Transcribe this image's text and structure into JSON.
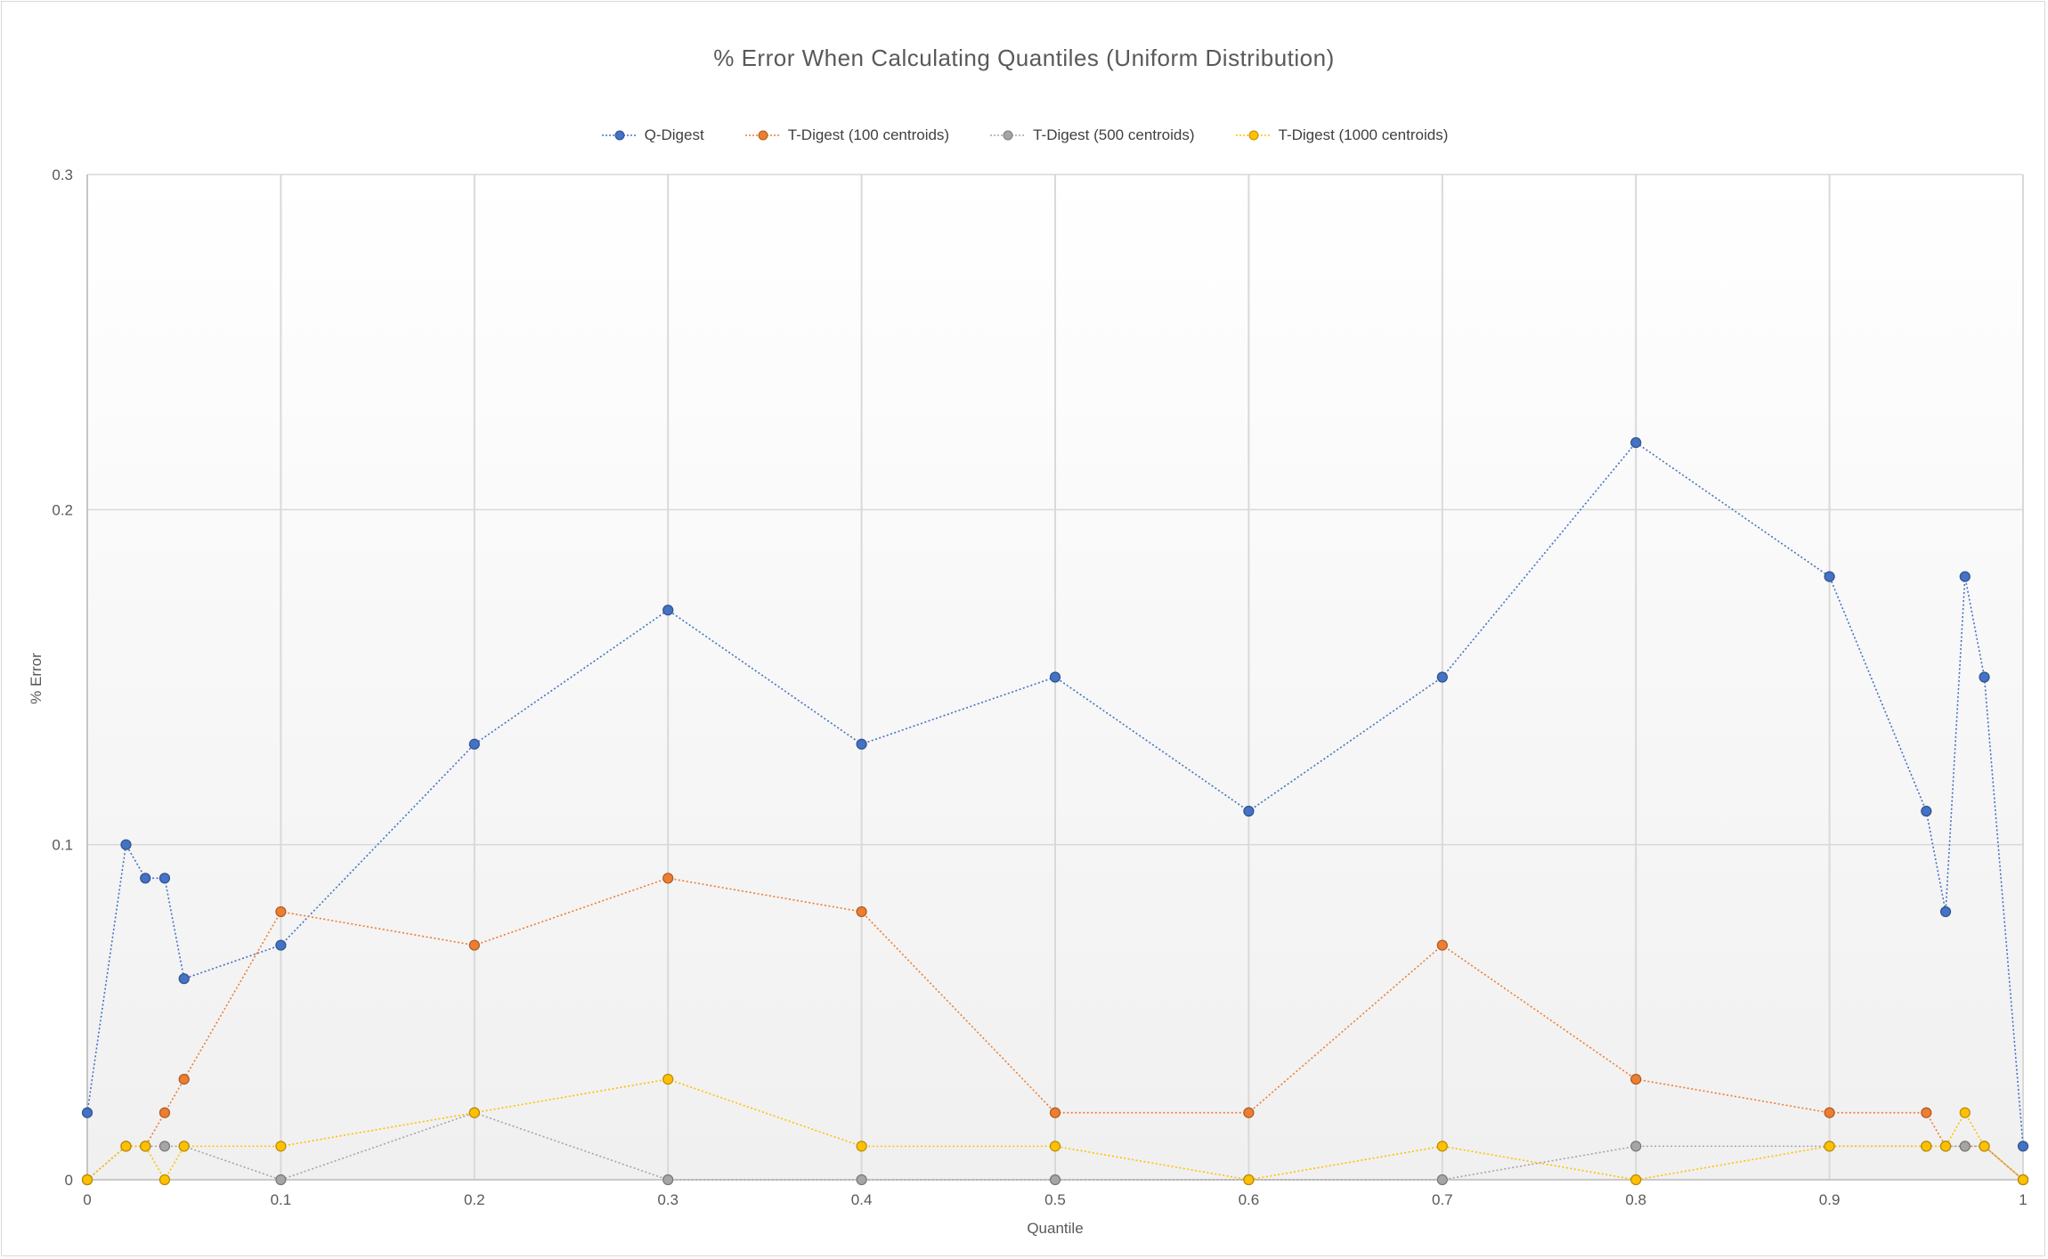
{
  "chart_data": {
    "type": "line",
    "title": "% Error When Calculating Quantiles (Uniform Distribution)",
    "xlabel": "Quantile",
    "ylabel": "% Error",
    "xlim": [
      0,
      1
    ],
    "ylim": [
      0,
      0.3
    ],
    "xticks": [
      0,
      0.1,
      0.2,
      0.3,
      0.4,
      0.5,
      0.6,
      0.7,
      0.8,
      0.9,
      1
    ],
    "xtick_labels": [
      "0",
      "0.1",
      "0.2",
      "0.3",
      "0.4",
      "0.5",
      "0.6",
      "0.7",
      "0.8",
      "0.9",
      "1"
    ],
    "yticks": [
      0,
      0.1,
      0.2,
      0.3
    ],
    "ytick_labels": [
      "0",
      "0.1",
      "0.2",
      "0.3"
    ],
    "grid": true,
    "legend_position": "top",
    "x": [
      0,
      0.02,
      0.03,
      0.04,
      0.05,
      0.1,
      0.2,
      0.3,
      0.4,
      0.5,
      0.6,
      0.7,
      0.8,
      0.9,
      0.95,
      0.96,
      0.97,
      0.98,
      1
    ],
    "series": [
      {
        "name": "Q-Digest",
        "color": "#4472c4",
        "values": [
          0.02,
          0.1,
          0.09,
          0.09,
          0.06,
          0.07,
          0.13,
          0.17,
          0.13,
          0.15,
          0.11,
          0.15,
          0.22,
          0.18,
          0.11,
          0.08,
          0.18,
          0.15,
          0.01
        ]
      },
      {
        "name": "T-Digest (100 centroids)",
        "color": "#ed7d31",
        "values": [
          0,
          0.01,
          0.01,
          0.02,
          0.03,
          0.08,
          0.07,
          0.09,
          0.08,
          0.02,
          0.02,
          0.07,
          0.03,
          0.02,
          0.02,
          0.01,
          0.01,
          0.01,
          0
        ]
      },
      {
        "name": "T-Digest (500 centroids)",
        "color": "#a5a5a5",
        "values": [
          0,
          0.01,
          0.01,
          0.01,
          0.01,
          0,
          0.02,
          0,
          0,
          0,
          0,
          0,
          0.01,
          0.01,
          0.01,
          0.01,
          0.01,
          0.01,
          0
        ]
      },
      {
        "name": "T-Digest (1000 centroids)",
        "color": "#ffc000",
        "values": [
          0,
          0.01,
          0.01,
          0,
          0.01,
          0.01,
          0.02,
          0.03,
          0.01,
          0.01,
          0,
          0.01,
          0,
          0.01,
          0.01,
          0.01,
          0.02,
          0.01,
          0
        ]
      }
    ]
  }
}
